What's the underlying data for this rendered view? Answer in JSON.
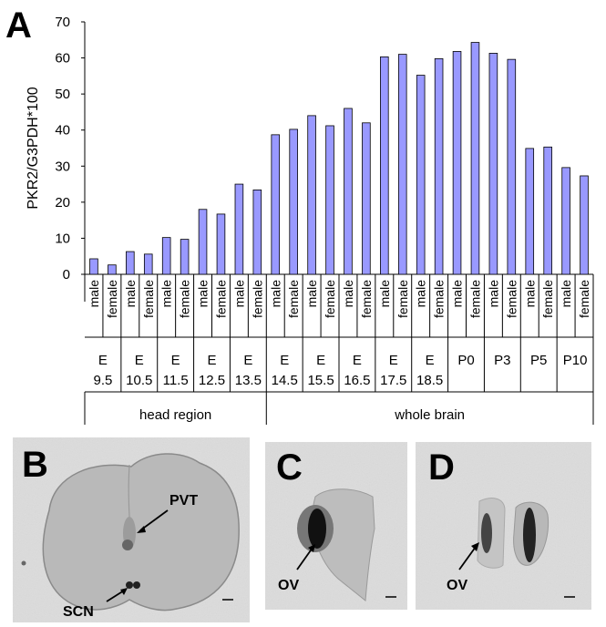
{
  "panel_labels": {
    "a": "A",
    "b": "B",
    "c": "C",
    "d": "D"
  },
  "chart_data": {
    "type": "bar",
    "ylabel": "PKR2/G3PDH*100",
    "ylim": [
      0,
      70
    ],
    "yticks": [
      0,
      10,
      20,
      30,
      40,
      50,
      60,
      70
    ],
    "bar_color": "#9999ff",
    "sex_labels": [
      "male",
      "female"
    ],
    "groups": [
      {
        "label_top": "E",
        "label_bottom": "9.5",
        "male": 4.3,
        "female": 2.6
      },
      {
        "label_top": "E",
        "label_bottom": "10.5",
        "male": 6.3,
        "female": 5.6
      },
      {
        "label_top": "E",
        "label_bottom": "11.5",
        "male": 10.2,
        "female": 9.7
      },
      {
        "label_top": "E",
        "label_bottom": "12.5",
        "male": 18.0,
        "female": 16.7
      },
      {
        "label_top": "E",
        "label_bottom": "13.5",
        "male": 25.0,
        "female": 23.4
      },
      {
        "label_top": "E",
        "label_bottom": "14.5",
        "male": 38.7,
        "female": 40.2
      },
      {
        "label_top": "E",
        "label_bottom": "15.5",
        "male": 44.0,
        "female": 41.2
      },
      {
        "label_top": "E",
        "label_bottom": "16.5",
        "male": 46.0,
        "female": 42.0
      },
      {
        "label_top": "E",
        "label_bottom": "17.5",
        "male": 60.3,
        "female": 61.0
      },
      {
        "label_top": "E",
        "label_bottom": "18.5",
        "male": 55.2,
        "female": 59.8
      },
      {
        "label_top": "P0",
        "label_bottom": "",
        "male": 61.8,
        "female": 64.3
      },
      {
        "label_top": "P3",
        "label_bottom": "",
        "male": 61.3,
        "female": 59.6
      },
      {
        "label_top": "P5",
        "label_bottom": "",
        "male": 34.9,
        "female": 35.3
      },
      {
        "label_top": "P10",
        "label_bottom": "",
        "male": 29.6,
        "female": 27.3
      }
    ],
    "regions": [
      {
        "label": "head region",
        "start_group": 0,
        "end_group": 4
      },
      {
        "label": "whole brain",
        "start_group": 5,
        "end_group": 13
      }
    ]
  },
  "panel_b": {
    "labels": [
      "PVT",
      "SCN"
    ]
  },
  "panel_c": {
    "labels": [
      "OV"
    ]
  },
  "panel_d": {
    "labels": [
      "OV"
    ]
  }
}
